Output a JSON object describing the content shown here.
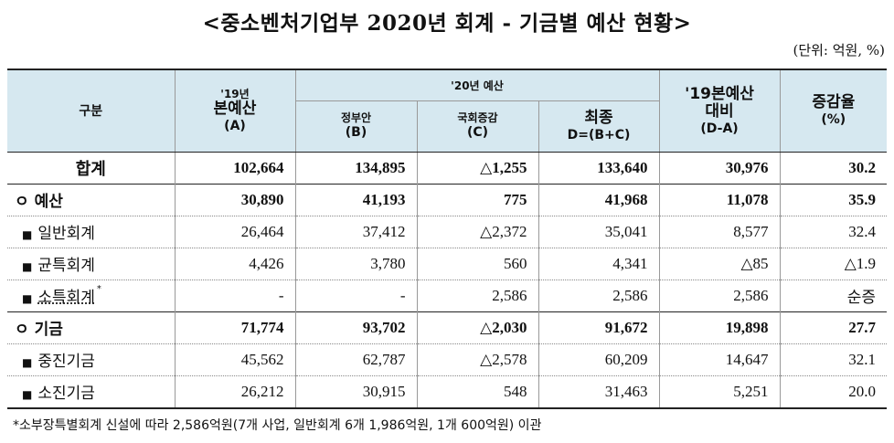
{
  "title": "<중소벤처기업부 2020년 회계 - 기금별 예산 현황>",
  "unit": "(단위: 억원, %)",
  "header": {
    "category": "구분",
    "col_a_year": "'19년",
    "col_a_name": "본예산",
    "col_a_code": "(A)",
    "group_2020": "'20년 예산",
    "col_b_name": "정부안",
    "col_b_code": "(B)",
    "col_c_name": "국회증감",
    "col_c_code": "(C)",
    "col_d_name": "최종",
    "col_d_code": "D=(B+C)",
    "col_e_line1": "'19본예산",
    "col_e_line2": "대비",
    "col_e_code": "(D-A)",
    "col_f_name": "증감율",
    "col_f_code": "(%)"
  },
  "rows": [
    {
      "label": "합계",
      "a": "102,664",
      "b": "134,895",
      "c": "△1,255",
      "d": "133,640",
      "e": "30,976",
      "f": "30.2"
    },
    {
      "bullet": "ㅇ",
      "label": "예산",
      "a": "30,890",
      "b": "41,193",
      "c": "775",
      "d": "41,968",
      "e": "11,078",
      "f": "35.9"
    },
    {
      "bullet": "■",
      "label": "일반회계",
      "a": "26,464",
      "b": "37,412",
      "c": "△2,372",
      "d": "35,041",
      "e": "8,577",
      "f": "32.4"
    },
    {
      "bullet": "■",
      "label": "균특회계",
      "a": "4,426",
      "b": "3,780",
      "c": "560",
      "d": "4,341",
      "e": "△85",
      "f": "△1.9"
    },
    {
      "bullet": "■",
      "label": "소특회계",
      "sup": "*",
      "a": "-",
      "b": "-",
      "c": "2,586",
      "d": "2,586",
      "e": "2,586",
      "f": "순증"
    },
    {
      "bullet": "ㅇ",
      "label": "기금",
      "a": "71,774",
      "b": "93,702",
      "c": "△2,030",
      "d": "91,672",
      "e": "19,898",
      "f": "27.7"
    },
    {
      "bullet": "■",
      "label": "중진기금",
      "a": "45,562",
      "b": "62,787",
      "c": "△2,578",
      "d": "60,209",
      "e": "14,647",
      "f": "32.1"
    },
    {
      "bullet": "■",
      "label": "소진기금",
      "a": "26,212",
      "b": "30,915",
      "c": "548",
      "d": "31,463",
      "e": "5,251",
      "f": "20.0"
    }
  ],
  "footnote": "*소부장특별회계 신설에 따라 2,586억원(7개 사업, 일반회계 6개 1,986억원, 1개 600억원) 이관"
}
